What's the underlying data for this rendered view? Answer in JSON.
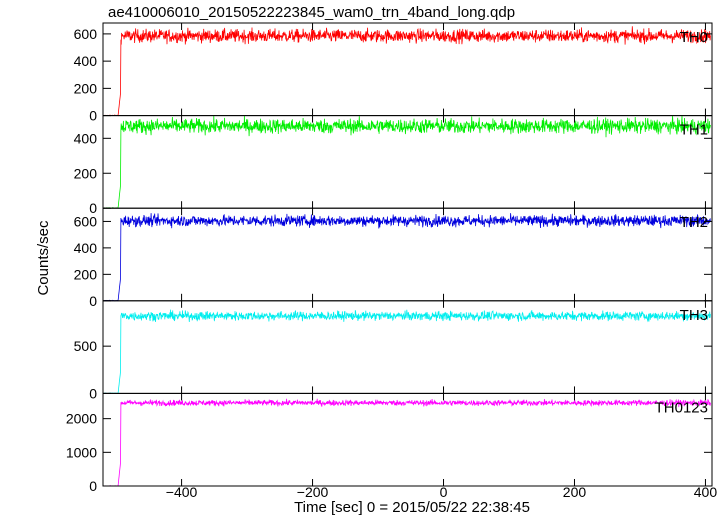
{
  "chart_data": {
    "type": "line",
    "title": "ae410006010_20150522223845_wam0_trn_4band_long.qdp",
    "xlabel": "Time [sec] 0 = 2015/05/22 22:38:45",
    "ylabel": "Counts/sec",
    "xlim": [
      -520,
      410
    ],
    "xticks": [
      -400,
      -200,
      0,
      200,
      400
    ],
    "onset_time": -493,
    "pre_onset_level": 0,
    "panels": [
      {
        "name": "TH0",
        "color": "#ff0000",
        "ylim": [
          0,
          680
        ],
        "yticks": [
          0,
          200,
          400,
          600
        ],
        "mean": 585,
        "amplitude": 40
      },
      {
        "name": "TH1",
        "color": "#00ee00",
        "ylim": [
          0,
          530
        ],
        "yticks": [
          0,
          200,
          400
        ],
        "mean": 470,
        "amplitude": 35
      },
      {
        "name": "TH2",
        "color": "#0000dd",
        "ylim": [
          0,
          700
        ],
        "yticks": [
          0,
          200,
          400,
          600
        ],
        "mean": 605,
        "amplitude": 35
      },
      {
        "name": "TH3",
        "color": "#00eeee",
        "ylim": [
          0,
          980
        ],
        "yticks": [
          0,
          500
        ],
        "mean": 820,
        "amplitude": 40
      },
      {
        "name": "TH0123",
        "color": "#ff00ff",
        "ylim": [
          0,
          2750
        ],
        "yticks": [
          0,
          1000,
          2000
        ],
        "mean": 2470,
        "amplitude": 70
      }
    ]
  }
}
